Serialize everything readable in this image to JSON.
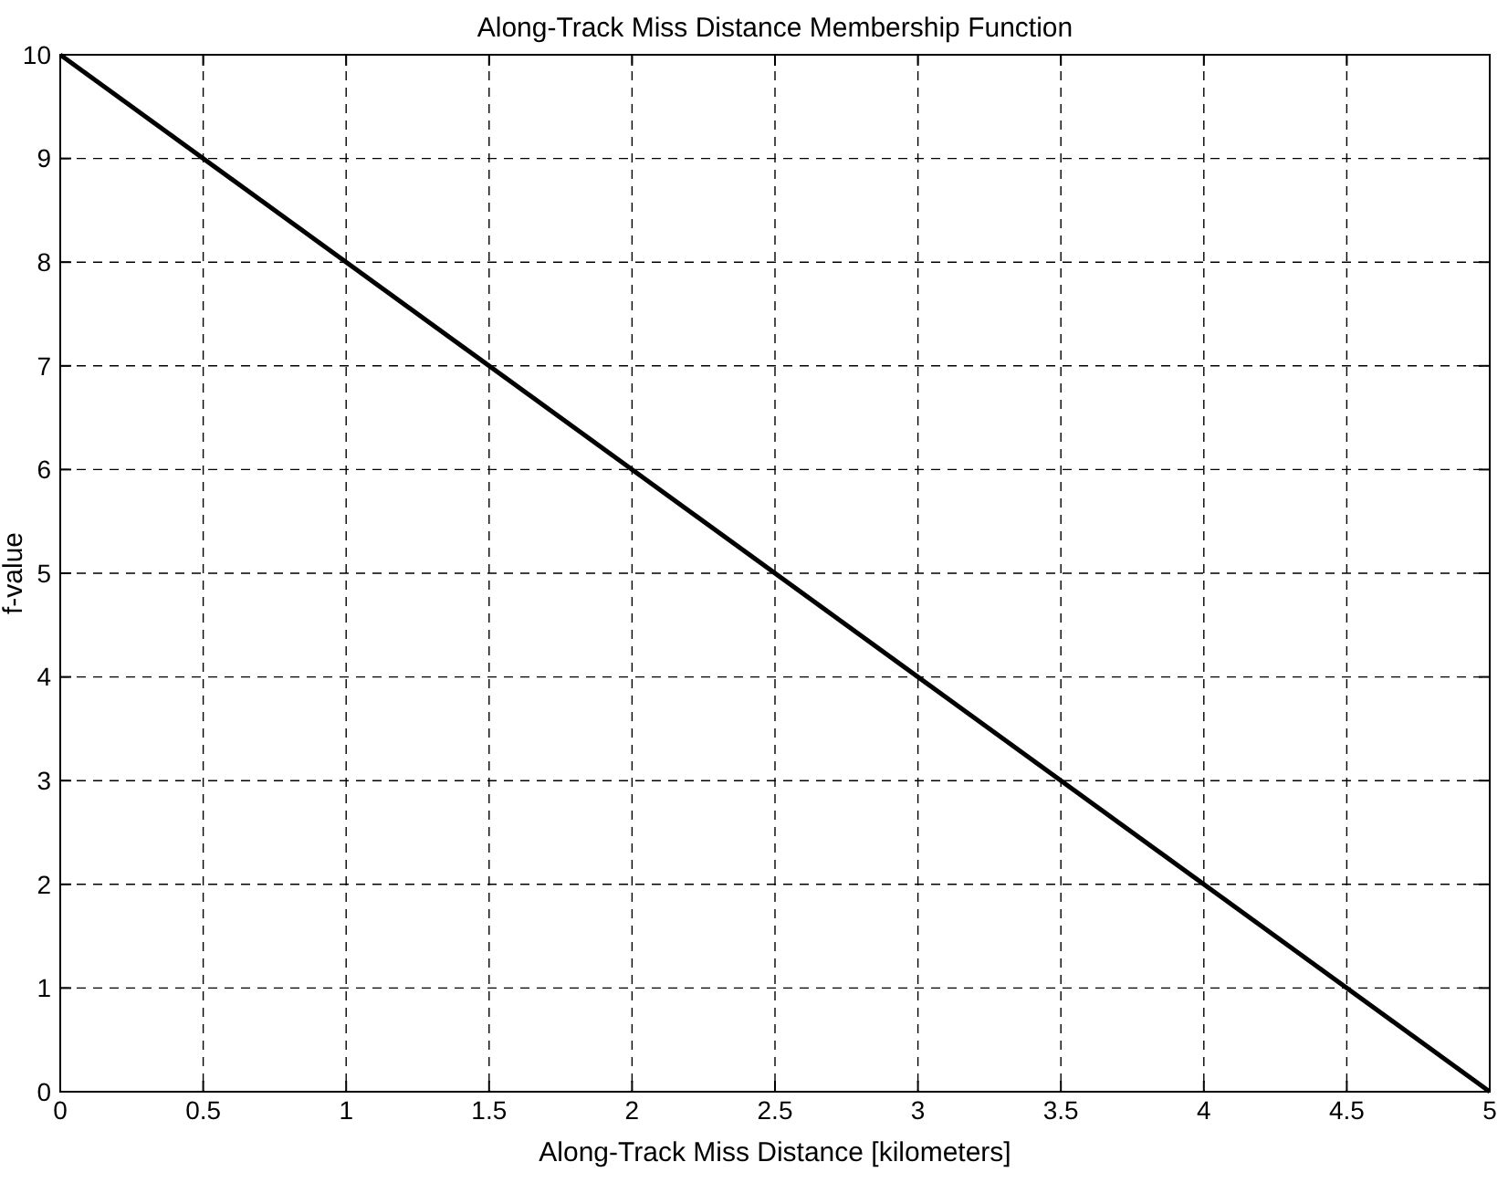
{
  "chart_data": {
    "type": "line",
    "title": "Along-Track Miss Distance Membership Function",
    "xlabel": "Along-Track Miss Distance [kilometers]",
    "ylabel": "f-value",
    "x": [
      0,
      5
    ],
    "series": [
      {
        "color": "#000000",
        "values": [
          10,
          0
        ]
      }
    ],
    "xlim": [
      0,
      5
    ],
    "xticks": [
      0,
      0.5,
      1,
      1.5,
      2,
      2.5,
      3,
      3.5,
      4,
      4.5,
      5
    ],
    "ylim": [
      0,
      10
    ],
    "yticks": [
      0,
      1,
      2,
      3,
      4,
      5,
      6,
      7,
      8,
      9,
      10
    ],
    "grid": true,
    "marker": "none",
    "line_style": "solid"
  }
}
